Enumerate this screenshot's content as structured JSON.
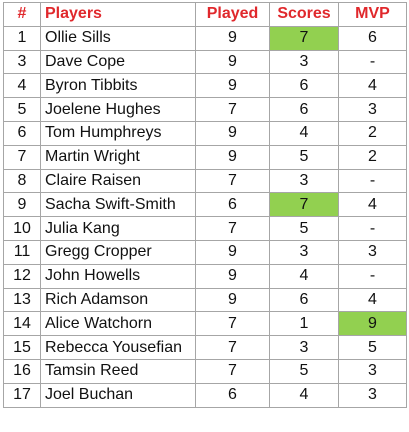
{
  "table": {
    "headers": {
      "num": "#",
      "players": "Players",
      "played": "Played",
      "scores": "Scores",
      "mvp": "MVP"
    },
    "highlight_color": "#92d050",
    "header_color": "#e0282c",
    "rows": [
      {
        "num": "1",
        "name": "Ollie Sills",
        "played": "9",
        "scores": "7",
        "mvp": "6",
        "hl": "scores"
      },
      {
        "num": "3",
        "name": "Dave Cope",
        "played": "9",
        "scores": "3",
        "mvp": "-",
        "hl": ""
      },
      {
        "num": "4",
        "name": "Byron Tibbits",
        "played": "9",
        "scores": "6",
        "mvp": "4",
        "hl": ""
      },
      {
        "num": "5",
        "name": "Joelene Hughes",
        "played": "7",
        "scores": "6",
        "mvp": "3",
        "hl": ""
      },
      {
        "num": "6",
        "name": "Tom Humphreys",
        "played": "9",
        "scores": "4",
        "mvp": "2",
        "hl": ""
      },
      {
        "num": "7",
        "name": "Martin Wright",
        "played": "9",
        "scores": "5",
        "mvp": "2",
        "hl": ""
      },
      {
        "num": "8",
        "name": "Claire Raisen",
        "played": "7",
        "scores": "3",
        "mvp": "-",
        "hl": ""
      },
      {
        "num": "9",
        "name": "Sacha Swift-Smith",
        "played": "6",
        "scores": "7",
        "mvp": "4",
        "hl": "scores"
      },
      {
        "num": "10",
        "name": "Julia Kang",
        "played": "7",
        "scores": "5",
        "mvp": "-",
        "hl": ""
      },
      {
        "num": "11",
        "name": "Gregg Cropper",
        "played": "9",
        "scores": "3",
        "mvp": "3",
        "hl": ""
      },
      {
        "num": "12",
        "name": "John Howells",
        "played": "9",
        "scores": "4",
        "mvp": "-",
        "hl": ""
      },
      {
        "num": "13",
        "name": "Rich Adamson",
        "played": "9",
        "scores": "6",
        "mvp": "4",
        "hl": ""
      },
      {
        "num": "14",
        "name": "Alice Watchorn",
        "played": "7",
        "scores": "1",
        "mvp": "9",
        "hl": "mvp"
      },
      {
        "num": "15",
        "name": "Rebecca Yousefian",
        "played": "7",
        "scores": "3",
        "mvp": "5",
        "hl": ""
      },
      {
        "num": "16",
        "name": "Tamsin Reed",
        "played": "7",
        "scores": "5",
        "mvp": "3",
        "hl": ""
      },
      {
        "num": "17",
        "name": "Joel Buchan",
        "played": "6",
        "scores": "4",
        "mvp": "3",
        "hl": ""
      }
    ]
  }
}
